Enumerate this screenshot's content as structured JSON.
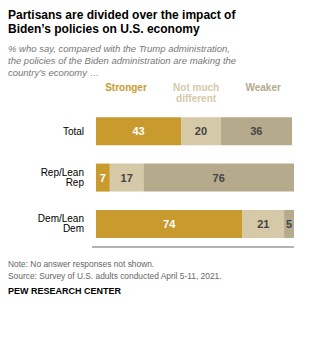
{
  "chart_data": {
    "type": "bar",
    "orientation": "horizontal",
    "stacked": true,
    "data_labels": true,
    "tick_labels": "y",
    "legend": "top",
    "title": "Partisans are divided over the impact of\nBiden’s policies on U.S. economy",
    "subtitle": "% who say, compared with the Trump administration,\nthe policies of the Biden administration are making the\ncountry’s economy …",
    "annotations": [
      "Note: No answer responses not shown.",
      "Source: Survey of U.S. adults conducted April 5-11, 2021.",
      "PEW RESEARCH CENTER"
    ],
    "categories": [
      "Total",
      "Rep/Lean Rep",
      "Dem/Lean Dem"
    ],
    "series": [
      {
        "name": "Stronger",
        "color": "#C99A2E",
        "values": [
          43,
          7,
          74
        ]
      },
      {
        "name": "Not much\ndifferent",
        "color": "#D5C9A8",
        "values": [
          20,
          17,
          21
        ]
      },
      {
        "name": "Weaker",
        "color": "#B5AA8C",
        "values": [
          36,
          76,
          5
        ]
      }
    ],
    "xlim": [
      -2,
      100
    ]
  }
}
